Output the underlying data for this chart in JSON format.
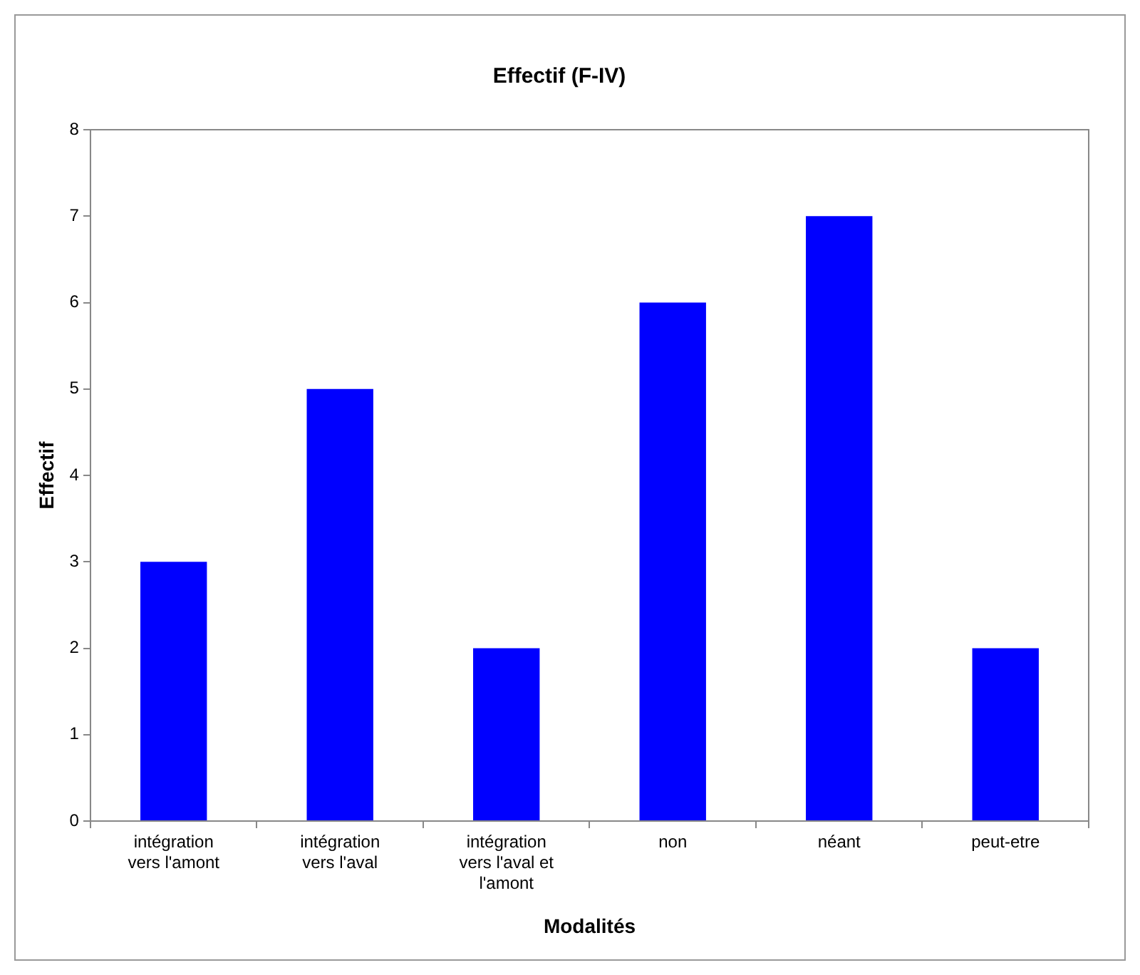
{
  "chart_data": {
    "type": "bar",
    "title": "Effectif (F-IV)",
    "xlabel": "Modalités",
    "ylabel": "Effectif",
    "categories": [
      "intégration vers l'amont",
      "intégration vers l'aval",
      "intégration vers l'aval et l'amont",
      "non",
      "néant",
      "peut-etre"
    ],
    "values": [
      3,
      5,
      2,
      6,
      7,
      2
    ],
    "color": "#0000ff",
    "ylim": [
      0,
      8
    ],
    "yticks": [
      0,
      1,
      2,
      3,
      4,
      5,
      6,
      7,
      8
    ],
    "grid": false,
    "legend": false
  }
}
